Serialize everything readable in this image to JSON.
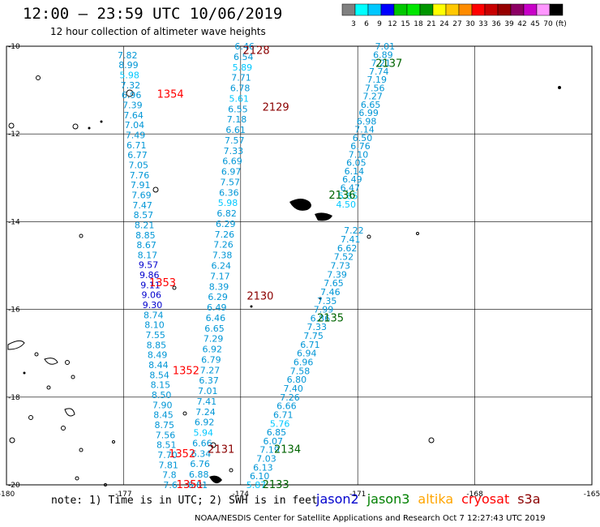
{
  "title": "12:00 – 23:59 UTC 10/06/2019",
  "subtitle": "12 hour collection of altimeter wave heights",
  "colorbar": {
    "colors": [
      "#808080",
      "#00ffff",
      "#00c8ff",
      "#0000ff",
      "#00c800",
      "#00e600",
      "#009600",
      "#ffff00",
      "#ffc800",
      "#ff8c00",
      "#ff0000",
      "#c80000",
      "#960000",
      "#8c0064",
      "#c800c8",
      "#ff96ff",
      "#000000"
    ],
    "labels": [
      "3",
      "6",
      "9",
      "12",
      "15",
      "18",
      "21",
      "24",
      "27",
      "30",
      "33",
      "36",
      "39",
      "42",
      "45",
      "70",
      "(ft)"
    ]
  },
  "axes": {
    "lon_ticks": [
      "-180",
      "-177",
      "-174",
      "-171",
      "-168",
      "-165"
    ],
    "lat_ticks": [
      "-10",
      "-12",
      "-14",
      "-16",
      "-18",
      "-20"
    ]
  },
  "tracks": [
    {
      "id": "2128",
      "color": "#8b0000",
      "lon": -173.6,
      "lat": -10.1
    },
    {
      "id": "2129",
      "color": "#8b0000",
      "lon": -173.1,
      "lat": -11.4
    },
    {
      "id": "2130",
      "color": "#8b0000",
      "lon": -173.5,
      "lat": -15.7
    },
    {
      "id": "2131",
      "color": "#8b0000",
      "lon": -174.5,
      "lat": -19.2
    },
    {
      "id": "2133",
      "color": "#006400",
      "lon": -173.1,
      "lat": -20.0
    },
    {
      "id": "2134",
      "color": "#006400",
      "lon": -172.8,
      "lat": -19.2
    },
    {
      "id": "2135",
      "color": "#006400",
      "lon": -171.7,
      "lat": -16.2
    },
    {
      "id": "2136",
      "color": "#006400",
      "lon": -171.4,
      "lat": -13.4
    },
    {
      "id": "2137",
      "color": "#006400",
      "lon": -170.2,
      "lat": -10.4
    },
    {
      "id": "1351",
      "color": "#ff0000",
      "lon": -175.3,
      "lat": -20.0
    },
    {
      "id": "1352",
      "color": "#ff0000",
      "lon": -175.5,
      "lat": -19.3
    },
    {
      "id": "1352",
      "color": "#ff0000",
      "lon": -175.4,
      "lat": -17.4
    },
    {
      "id": "1353",
      "color": "#ff0000",
      "lon": -176.0,
      "lat": -15.4
    },
    {
      "id": "1354",
      "color": "#ff0000",
      "lon": -175.8,
      "lat": -11.1
    }
  ],
  "series": [
    {
      "lon0": -176.9,
      "lat0": -10.2,
      "lon1": -175.8,
      "lat1": -20.0,
      "values": [
        "7.82",
        "8.99",
        "5.98",
        "7.32",
        "6.96",
        "7.39",
        "7.64",
        "7.04",
        "7.49",
        "6.71",
        "6.77",
        "7.05",
        "7.76",
        "7.91",
        "7.69",
        "7.47",
        "8.57",
        "8.21",
        "8.85",
        "8.67",
        "8.17",
        "9.57",
        "9.86",
        "9.11",
        "9.06",
        "9.30",
        "8.74",
        "8.10",
        "7.55",
        "8.85",
        "8.49",
        "8.44",
        "8.54",
        "8.15",
        "8.50",
        "7.90",
        "8.45",
        "8.75",
        "7.56",
        "8.51",
        "7.70",
        "7.81",
        "7.8",
        "7.6"
      ]
    },
    {
      "lon0": -173.9,
      "lat0": -10.0,
      "lon1": -175.1,
      "lat1": -20.0,
      "values": [
        "6.46",
        "6.54",
        "5.89",
        "7.71",
        "6.78",
        "5.61",
        "6.55",
        "7.18",
        "6.61",
        "7.57",
        "7.33",
        "6.69",
        "6.97",
        "7.57",
        "6.36",
        "5.98",
        "6.82",
        "6.29",
        "7.26",
        "7.26",
        "7.38",
        "6.24",
        "7.17",
        "8.39",
        "6.29",
        "6.49",
        "6.46",
        "6.65",
        "7.29",
        "6.92",
        "6.79",
        "7.27",
        "6.37",
        "7.01",
        "7.41",
        "7.24",
        "6.92",
        "5.94",
        "6.66",
        "6.34",
        "6.76",
        "6.88",
        "6.81"
      ]
    },
    {
      "lon0": -170.3,
      "lat0": -10.0,
      "lon1": -171.3,
      "lat1": -13.6,
      "values": [
        "7.01",
        "6.89",
        "7.21",
        "7.74",
        "7.19",
        "7.56",
        "7.27",
        "6.65",
        "6.99",
        "6.98",
        "7.14",
        "6.50",
        "6.76",
        "7.10",
        "6.05",
        "6.14",
        "6.49",
        "6.47",
        "5.85",
        "4.50"
      ]
    },
    {
      "lon0": -171.1,
      "lat0": -14.2,
      "lon1": -173.6,
      "lat1": -20.0,
      "values": [
        "7.22",
        "7.41",
        "6.62",
        "7.52",
        "7.73",
        "7.39",
        "7.65",
        "7.46",
        "7.35",
        "7.99",
        "6.86",
        "7.33",
        "7.75",
        "6.71",
        "6.94",
        "6.96",
        "7.58",
        "6.80",
        "7.40",
        "7.26",
        "6.66",
        "6.71",
        "5.76",
        "6.85",
        "6.07",
        "7.19",
        "7.03",
        "6.13",
        "6.10",
        "5.87"
      ]
    }
  ],
  "note": "note:  1)  Time is in UTC;  2)  SWH is in feet",
  "legend": [
    {
      "label": "jason2",
      "color": "#0000cd"
    },
    {
      "label": "jason3",
      "color": "#008000"
    },
    {
      "label": "altika",
      "color": "#ffa500"
    },
    {
      "label": "cryosat",
      "color": "#ff0000"
    },
    {
      "label": "s3a",
      "color": "#8b0000"
    }
  ],
  "footer": "NOAA/NESDIS Center for Satellite Applications and Research   Oct  7 12:27:43 UTC 2019"
}
